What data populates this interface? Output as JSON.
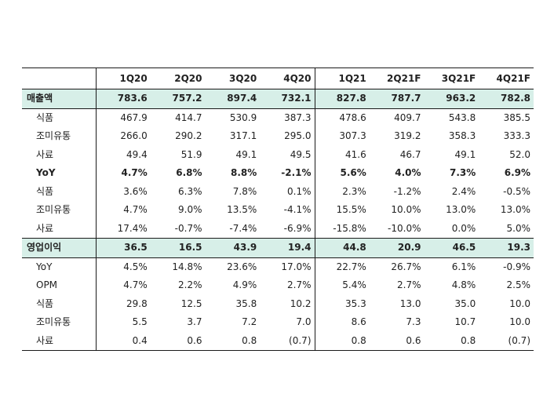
{
  "table": {
    "header_label": "",
    "columns": [
      "1Q20",
      "2Q20",
      "3Q20",
      "4Q20",
      "1Q21",
      "2Q21F",
      "3Q21F",
      "4Q21F"
    ],
    "rows": [
      {
        "label": "매출액",
        "style": "section",
        "values": [
          "783.6",
          "757.2",
          "897.4",
          "732.1",
          "827.8",
          "787.7",
          "963.2",
          "782.8"
        ]
      },
      {
        "label": "식품",
        "style": "normal",
        "values": [
          "467.9",
          "414.7",
          "530.9",
          "387.3",
          "478.6",
          "409.7",
          "543.8",
          "385.5"
        ]
      },
      {
        "label": "조미유통",
        "style": "normal",
        "values": [
          "266.0",
          "290.2",
          "317.1",
          "295.0",
          "307.3",
          "319.2",
          "358.3",
          "333.3"
        ]
      },
      {
        "label": "사료",
        "style": "normal",
        "values": [
          "49.4",
          "51.9",
          "49.1",
          "49.5",
          "41.6",
          "46.7",
          "49.1",
          "52.0"
        ]
      },
      {
        "label": "YoY",
        "style": "bold",
        "values": [
          "4.7%",
          "6.8%",
          "8.8%",
          "-2.1%",
          "5.6%",
          "4.0%",
          "7.3%",
          "6.9%"
        ]
      },
      {
        "label": "식품",
        "style": "normal",
        "values": [
          "3.6%",
          "6.3%",
          "7.8%",
          "0.1%",
          "2.3%",
          "-1.2%",
          "2.4%",
          "-0.5%"
        ]
      },
      {
        "label": "조미유통",
        "style": "normal",
        "values": [
          "4.7%",
          "9.0%",
          "13.5%",
          "-4.1%",
          "15.5%",
          "10.0%",
          "13.0%",
          "13.0%"
        ]
      },
      {
        "label": "사료",
        "style": "normal",
        "values": [
          "17.4%",
          "-0.7%",
          "-7.4%",
          "-6.9%",
          "-15.8%",
          "-10.0%",
          "0.0%",
          "5.0%"
        ]
      },
      {
        "label": "영업이익",
        "style": "section",
        "values": [
          "36.5",
          "16.5",
          "43.9",
          "19.4",
          "44.8",
          "20.9",
          "46.5",
          "19.3"
        ]
      },
      {
        "label": "YoY",
        "style": "normal",
        "values": [
          "4.5%",
          "14.8%",
          "23.6%",
          "17.0%",
          "22.7%",
          "26.7%",
          "6.1%",
          "-0.9%"
        ]
      },
      {
        "label": "OPM",
        "style": "normal",
        "values": [
          "4.7%",
          "2.2%",
          "4.9%",
          "2.7%",
          "5.4%",
          "2.7%",
          "4.8%",
          "2.5%"
        ]
      },
      {
        "label": "식품",
        "style": "normal",
        "values": [
          "29.8",
          "12.5",
          "35.8",
          "10.2",
          "35.3",
          "13.0",
          "35.0",
          "10.0"
        ]
      },
      {
        "label": "조미유통",
        "style": "normal",
        "values": [
          "5.5",
          "3.7",
          "7.2",
          "7.0",
          "8.6",
          "7.3",
          "10.7",
          "10.0"
        ]
      },
      {
        "label": "사료",
        "style": "normal",
        "values": [
          "0.4",
          "0.6",
          "0.8",
          "(0.7)",
          "0.8",
          "0.6",
          "0.8",
          "(0.7)"
        ]
      }
    ]
  }
}
